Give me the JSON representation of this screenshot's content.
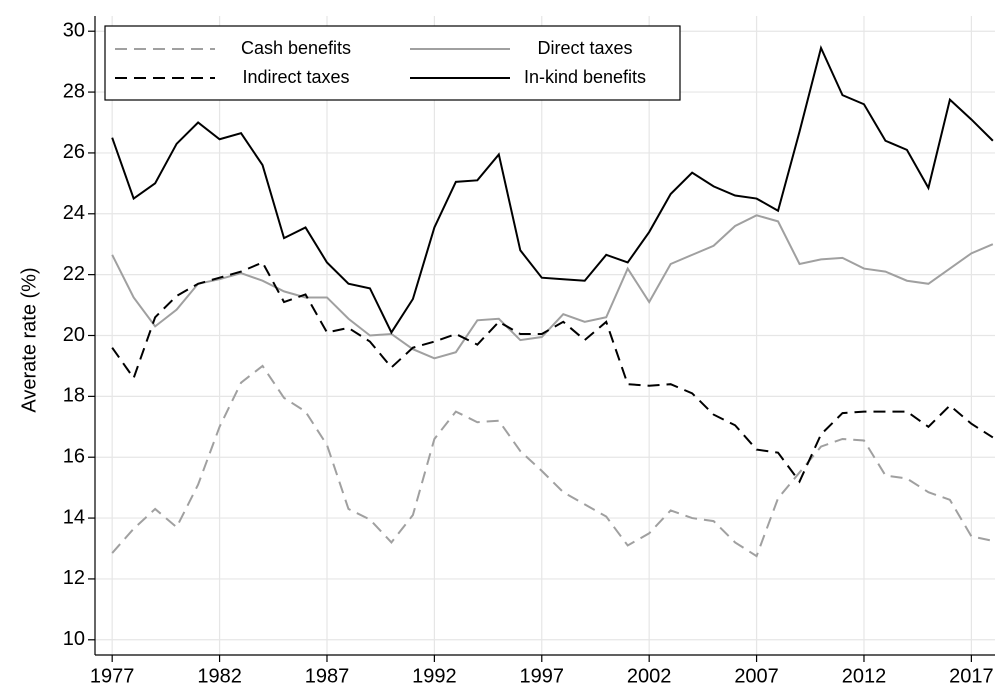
{
  "chart_data": {
    "type": "line",
    "ylabel": "Averate rate (%)",
    "x": [
      1977,
      1978,
      1979,
      1980,
      1981,
      1982,
      1983,
      1984,
      1985,
      1986,
      1987,
      1988,
      1989,
      1990,
      1991,
      1992,
      1993,
      1994,
      1995,
      1996,
      1997,
      1998,
      1999,
      2000,
      2001,
      2002,
      2003,
      2004,
      2005,
      2006,
      2007,
      2008,
      2009,
      2010,
      2011,
      2012,
      2013,
      2014,
      2015,
      2016,
      2017,
      2018
    ],
    "series": [
      {
        "name": "Cash benefits",
        "color": "#a0a0a0",
        "dashed": true,
        "values": [
          12.85,
          13.65,
          14.3,
          13.7,
          15.1,
          17.0,
          18.45,
          19.0,
          17.95,
          17.5,
          16.4,
          14.3,
          13.95,
          13.2,
          14.1,
          16.6,
          17.5,
          17.15,
          17.2,
          16.2,
          15.55,
          14.85,
          14.45,
          14.05,
          13.1,
          13.5,
          14.25,
          14.0,
          13.9,
          13.2,
          12.75,
          14.65,
          15.5,
          16.35,
          16.6,
          16.55,
          15.4,
          15.3,
          14.85,
          14.6,
          13.4,
          13.25
        ]
      },
      {
        "name": "Direct taxes",
        "color": "#a0a0a0",
        "dashed": false,
        "values": [
          22.65,
          21.25,
          20.3,
          20.85,
          21.7,
          21.85,
          22.05,
          21.8,
          21.45,
          21.25,
          21.25,
          20.55,
          20.0,
          20.05,
          19.55,
          19.25,
          19.45,
          20.5,
          20.55,
          19.85,
          19.95,
          20.7,
          20.45,
          20.6,
          22.2,
          21.1,
          22.35,
          22.65,
          22.95,
          23.6,
          23.95,
          23.75,
          22.35,
          22.5,
          22.55,
          22.2,
          22.1,
          21.8,
          21.7,
          22.2,
          22.7,
          23.0
        ]
      },
      {
        "name": "Indirect taxes",
        "color": "#000000",
        "dashed": true,
        "values": [
          19.6,
          18.6,
          20.6,
          21.3,
          21.7,
          21.9,
          22.1,
          22.4,
          21.1,
          21.35,
          20.1,
          20.25,
          19.8,
          18.95,
          19.6,
          19.8,
          20.05,
          19.7,
          20.45,
          20.05,
          20.05,
          20.45,
          19.85,
          20.45,
          18.4,
          18.35,
          18.4,
          18.1,
          17.4,
          17.05,
          16.25,
          16.15,
          15.2,
          16.75,
          17.45,
          17.5,
          17.5,
          17.5,
          17.0,
          17.7,
          17.1,
          16.65
        ]
      },
      {
        "name": "In-kind benefits",
        "color": "#000000",
        "dashed": false,
        "values": [
          26.5,
          24.5,
          25.0,
          26.3,
          27.0,
          26.45,
          26.65,
          25.6,
          23.2,
          23.55,
          22.4,
          21.7,
          21.55,
          20.1,
          21.2,
          23.55,
          25.05,
          25.1,
          25.95,
          22.8,
          21.9,
          21.85,
          21.8,
          22.65,
          22.4,
          23.4,
          24.65,
          25.35,
          24.9,
          24.6,
          24.5,
          24.1,
          26.7,
          29.45,
          27.9,
          27.6,
          26.4,
          26.1,
          24.85,
          27.75,
          27.1,
          26.4
        ]
      }
    ],
    "xlim": [
      1976.2,
      2018.1
    ],
    "xticks": [
      1977,
      1982,
      1987,
      1992,
      1997,
      2002,
      2007,
      2012,
      2017
    ],
    "ylim": [
      9.5,
      30.5
    ],
    "yticks": [
      10,
      12,
      14,
      16,
      18,
      20,
      22,
      24,
      26,
      28,
      30
    ],
    "grid": true,
    "legend": "top-left"
  }
}
